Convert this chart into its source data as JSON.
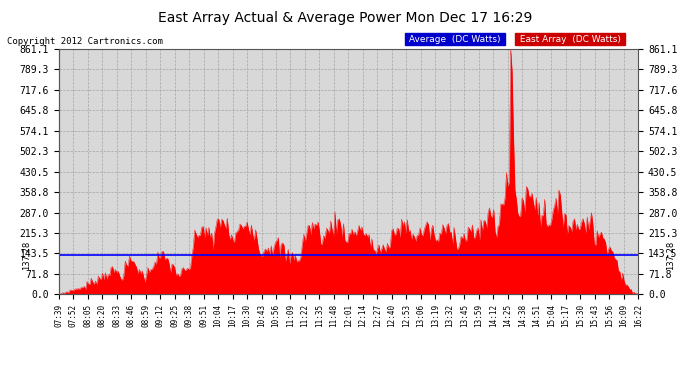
{
  "title": "East Array Actual & Average Power Mon Dec 17 16:29",
  "copyright": "Copyright 2012 Cartronics.com",
  "average_value": 137.28,
  "y_max": 861.1,
  "y_ticks": [
    0.0,
    71.8,
    143.5,
    215.3,
    287.0,
    358.8,
    430.5,
    502.3,
    574.1,
    645.8,
    717.6,
    789.3,
    861.1
  ],
  "y_tick_labels": [
    "0.0",
    "71.8",
    "143.5",
    "215.3",
    "287.0",
    "358.8",
    "430.5",
    "502.3",
    "574.1",
    "645.8",
    "717.6",
    "789.3",
    "861.1"
  ],
  "background_color": "#ffffff",
  "plot_bg_color": "#d8d8d8",
  "fill_color": "#ff0000",
  "line_color": "#ff0000",
  "avg_line_color": "#0000ff",
  "grid_color": "#aaaaaa",
  "title_color": "#000000",
  "legend_avg_bg": "#0000cc",
  "legend_east_bg": "#cc0000",
  "x_labels": [
    "07:39",
    "07:52",
    "08:05",
    "08:20",
    "08:33",
    "08:46",
    "08:59",
    "09:12",
    "09:25",
    "09:38",
    "09:51",
    "10:04",
    "10:17",
    "10:30",
    "10:43",
    "10:56",
    "11:09",
    "11:22",
    "11:35",
    "11:48",
    "12:01",
    "12:14",
    "12:27",
    "12:40",
    "12:53",
    "13:06",
    "13:19",
    "13:32",
    "13:45",
    "13:59",
    "14:12",
    "14:25",
    "14:38",
    "14:51",
    "15:04",
    "15:17",
    "15:30",
    "15:43",
    "15:56",
    "16:09",
    "16:22"
  ],
  "num_points": 410
}
